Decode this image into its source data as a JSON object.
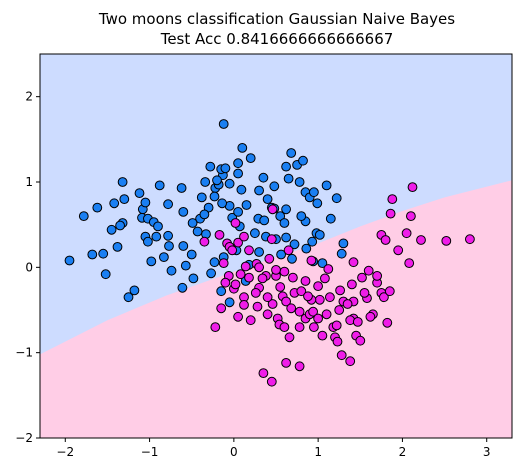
{
  "chart_data": {
    "type": "scatter",
    "title": "Two moons classification Gaussian Naive Bayes",
    "subtitle": "Test Acc 0.8416666666666667",
    "xlabel": "",
    "ylabel": "",
    "xlim": [
      -2.3,
      3.3
    ],
    "ylim": [
      -2.0,
      2.5
    ],
    "xticks": [
      -2,
      -1,
      0,
      1,
      2,
      3
    ],
    "yticks": [
      -2,
      -1,
      0,
      1,
      2
    ],
    "grid": false,
    "decision_regions": {
      "upper_class_color": "#cddcff",
      "lower_class_color": "#ffcde6",
      "boundary_points": [
        [
          -2.3,
          -1.02
        ],
        [
          -1.5,
          -0.62
        ],
        [
          -0.8,
          -0.33
        ],
        [
          0.0,
          -0.05
        ],
        [
          0.5,
          0.12
        ],
        [
          1.0,
          0.28
        ],
        [
          1.5,
          0.48
        ],
        [
          2.0,
          0.66
        ],
        [
          2.5,
          0.82
        ],
        [
          3.3,
          1.02
        ]
      ]
    },
    "series": [
      {
        "color": "#1a7ff2",
        "points": [
          [
            -1.62,
            0.7
          ],
          [
            -1.42,
            0.75
          ],
          [
            -1.32,
            1.0
          ],
          [
            -1.3,
            0.8
          ],
          [
            -1.32,
            0.52
          ],
          [
            -1.35,
            0.49
          ],
          [
            -1.12,
            0.87
          ],
          [
            -1.08,
            0.68
          ],
          [
            -1.09,
            0.58
          ],
          [
            -1.02,
            0.57
          ],
          [
            -0.95,
            0.53
          ],
          [
            -0.9,
            0.48
          ],
          [
            -0.92,
            0.36
          ],
          [
            -1.05,
            0.36
          ],
          [
            -1.02,
            0.3
          ],
          [
            -1.05,
            0.76
          ],
          [
            -0.78,
            0.37
          ],
          [
            -0.77,
            0.25
          ],
          [
            -0.6,
            0.65
          ],
          [
            -0.6,
            0.25
          ],
          [
            -0.57,
            0.02
          ],
          [
            -0.5,
            0.15
          ],
          [
            -0.43,
            0.42
          ],
          [
            -0.4,
            0.57
          ],
          [
            -0.38,
            0.82
          ],
          [
            -0.34,
            1.0
          ],
          [
            -0.22,
            0.93
          ],
          [
            -0.23,
            0.83
          ],
          [
            -0.18,
            0.97
          ],
          [
            -0.13,
            1.08
          ],
          [
            -0.2,
            1.02
          ],
          [
            -0.15,
            1.15
          ],
          [
            -0.05,
            0.98
          ],
          [
            -0.1,
            1.16
          ],
          [
            -0.28,
            1.18
          ],
          [
            -0.3,
            0.7
          ],
          [
            -0.05,
            0.72
          ],
          [
            -0.02,
            0.58
          ],
          [
            0.05,
            1.1
          ],
          [
            0.15,
            0.73
          ],
          [
            0.05,
            1.22
          ],
          [
            0.1,
            1.4
          ],
          [
            0.2,
            1.28
          ],
          [
            0.3,
            0.9
          ],
          [
            0.35,
            1.05
          ],
          [
            0.4,
            0.8
          ],
          [
            0.45,
            0.7
          ],
          [
            0.55,
            0.6
          ],
          [
            0.6,
            0.52
          ],
          [
            0.62,
            0.35
          ],
          [
            0.65,
            1.04
          ],
          [
            0.68,
            1.34
          ],
          [
            0.75,
            1.2
          ],
          [
            0.78,
            1.0
          ],
          [
            0.82,
            1.25
          ],
          [
            0.85,
            0.88
          ],
          [
            0.9,
            0.82
          ],
          [
            0.95,
            0.88
          ],
          [
            0.98,
            0.4
          ],
          [
            1.02,
            0.38
          ],
          [
            1.1,
            0.96
          ],
          [
            1.15,
            0.57
          ],
          [
            1.3,
            0.28
          ],
          [
            -1.18,
            -0.27
          ],
          [
            -0.23,
            0.06
          ],
          [
            -0.12,
            1.68
          ],
          [
            -1.52,
            -0.08
          ],
          [
            -1.55,
            0.16
          ],
          [
            0.86,
            0.22
          ],
          [
            0.94,
            0.07
          ],
          [
            0.69,
            0.1
          ],
          [
            0.3,
            0.18
          ],
          [
            0.14,
            -0.16
          ],
          [
            -0.27,
            -0.07
          ],
          [
            0.56,
            0.15
          ],
          [
            0.5,
            0.33
          ],
          [
            -0.12,
            0.12
          ],
          [
            0.29,
            0.57
          ],
          [
            -0.83,
            0.12
          ],
          [
            -0.74,
            -0.04
          ],
          [
            -0.98,
            0.07
          ],
          [
            -1.38,
            0.24
          ],
          [
            -1.78,
            0.6
          ],
          [
            0.99,
            0.75
          ],
          [
            0.72,
            0.27
          ],
          [
            0.85,
            0.54
          ],
          [
            0.25,
            0.4
          ],
          [
            -0.14,
            0.75
          ],
          [
            -0.61,
            -0.24
          ],
          [
            0.03,
            0.2
          ],
          [
            1.05,
            0.05
          ],
          [
            -0.33,
            0.39
          ],
          [
            -1.68,
            0.15
          ],
          [
            -1.95,
            0.08
          ],
          [
            0.48,
            0.95
          ],
          [
            -0.48,
            -0.13
          ],
          [
            0.36,
            0.55
          ],
          [
            -1.25,
            -0.35
          ],
          [
            -0.05,
            -0.41
          ],
          [
            0.09,
            0.91
          ],
          [
            0.18,
            0.03
          ],
          [
            0.48,
            0.69
          ],
          [
            0.38,
            0.36
          ],
          [
            -0.88,
            0.96
          ],
          [
            -0.35,
            0.62
          ],
          [
            0.62,
            0.68
          ],
          [
            -0.49,
            0.52
          ],
          [
            0.05,
            0.65
          ],
          [
            1.28,
            0.16
          ],
          [
            0.62,
            1.18
          ],
          [
            0.8,
            0.6
          ],
          [
            -1.45,
            0.44
          ],
          [
            -0.62,
            0.93
          ],
          [
            0.93,
            0.3
          ],
          [
            -0.15,
            -0.28
          ],
          [
            0.07,
            0.48
          ],
          [
            1.22,
            0.81
          ],
          [
            -0.78,
            0.74
          ]
        ]
      },
      {
        "color": "#ef1de8",
        "points": [
          [
            -0.35,
            0.3
          ],
          [
            -0.17,
            0.38
          ],
          [
            -0.08,
            0.28
          ],
          [
            -0.05,
            0.24
          ],
          [
            -0.02,
            0.2
          ],
          [
            0.02,
            0.52
          ],
          [
            0.05,
            0.29
          ],
          [
            0.12,
            0.36
          ],
          [
            0.14,
            0.01
          ],
          [
            0.27,
            0.04
          ],
          [
            0.38,
            -0.1
          ],
          [
            0.42,
            0.1
          ],
          [
            0.45,
            0.33
          ],
          [
            0.5,
            -0.1
          ],
          [
            0.55,
            -0.23
          ],
          [
            0.58,
            -0.34
          ],
          [
            0.62,
            -0.4
          ],
          [
            0.65,
            0.2
          ],
          [
            0.72,
            -0.3
          ],
          [
            0.8,
            -0.28
          ],
          [
            0.85,
            -0.6
          ],
          [
            0.9,
            -0.55
          ],
          [
            0.95,
            -0.7
          ],
          [
            1.0,
            -0.22
          ],
          [
            1.02,
            -0.38
          ],
          [
            1.05,
            -0.8
          ],
          [
            1.12,
            -0.02
          ],
          [
            1.18,
            -0.7
          ],
          [
            1.2,
            -0.82
          ],
          [
            1.25,
            -0.5
          ],
          [
            1.3,
            -0.4
          ],
          [
            1.4,
            -0.2
          ],
          [
            1.42,
            -0.6
          ],
          [
            1.45,
            -0.8
          ],
          [
            1.5,
            -0.86
          ],
          [
            1.52,
            -0.12
          ],
          [
            1.58,
            -0.36
          ],
          [
            1.6,
            -0.04
          ],
          [
            1.65,
            -0.55
          ],
          [
            1.7,
            -0.18
          ],
          [
            1.75,
            -0.3
          ],
          [
            1.78,
            -0.35
          ],
          [
            1.82,
            -0.65
          ],
          [
            1.86,
            0.63
          ],
          [
            1.85,
            -0.28
          ],
          [
            1.88,
            0.8
          ],
          [
            2.05,
            0.4
          ],
          [
            2.08,
            0.05
          ],
          [
            2.1,
            0.6
          ],
          [
            2.12,
            0.94
          ],
          [
            2.22,
            0.32
          ],
          [
            2.52,
            0.31
          ],
          [
            2.8,
            0.33
          ],
          [
            1.75,
            0.38
          ],
          [
            1.8,
            0.32
          ],
          [
            1.95,
            0.2
          ],
          [
            0.35,
            -1.24
          ],
          [
            0.45,
            -1.34
          ],
          [
            0.62,
            -1.12
          ],
          [
            0.78,
            -1.16
          ],
          [
            1.28,
            -1.03
          ],
          [
            1.38,
            -1.1
          ],
          [
            -0.22,
            -0.7
          ],
          [
            -0.15,
            -0.48
          ],
          [
            0.0,
            -0.25
          ],
          [
            0.28,
            -0.46
          ],
          [
            0.2,
            -0.62
          ],
          [
            0.4,
            -0.55
          ],
          [
            0.12,
            -0.35
          ],
          [
            0.3,
            -0.24
          ],
          [
            0.46,
            -0.43
          ],
          [
            0.68,
            -0.48
          ],
          [
            0.78,
            -0.7
          ],
          [
            0.92,
            -0.38
          ],
          [
            0.92,
            0.08
          ],
          [
            0.6,
            -0.05
          ],
          [
            0.7,
            -0.12
          ],
          [
            1.42,
            -0.4
          ],
          [
            1.38,
            -0.62
          ],
          [
            1.1,
            -0.55
          ],
          [
            0.34,
            -0.13
          ],
          [
            0.85,
            -0.16
          ],
          [
            1.42,
            0.06
          ],
          [
            1.26,
            -0.27
          ],
          [
            1.7,
            -0.1
          ],
          [
            0.18,
            -0.12
          ],
          [
            -0.06,
            -0.1
          ],
          [
            1.55,
            -0.3
          ],
          [
            0.08,
            -0.08
          ],
          [
            0.5,
            -0.03
          ],
          [
            0.52,
            -0.6
          ],
          [
            0.66,
            -0.82
          ],
          [
            1.35,
            -0.43
          ],
          [
            1.23,
            -0.87
          ],
          [
            0.26,
            -0.3
          ],
          [
            0.94,
            -0.52
          ],
          [
            1.62,
            -0.58
          ],
          [
            -0.1,
            -0.18
          ],
          [
            0.4,
            -0.35
          ],
          [
            0.12,
            -0.44
          ],
          [
            1.08,
            -0.13
          ],
          [
            0.78,
            -0.52
          ],
          [
            1.22,
            -0.68
          ],
          [
            0.54,
            -0.67
          ],
          [
            1.47,
            -0.64
          ],
          [
            0.18,
            0.2
          ],
          [
            0.05,
            -0.58
          ],
          [
            0.88,
            -0.34
          ],
          [
            1.0,
            -0.6
          ],
          [
            0.6,
            -0.7
          ],
          [
            1.14,
            -0.35
          ],
          [
            0.46,
            0.68
          ],
          [
            -0.12,
            0.05
          ],
          [
            0.3,
            0.0
          ],
          [
            0.02,
            -0.2
          ]
        ]
      }
    ]
  }
}
